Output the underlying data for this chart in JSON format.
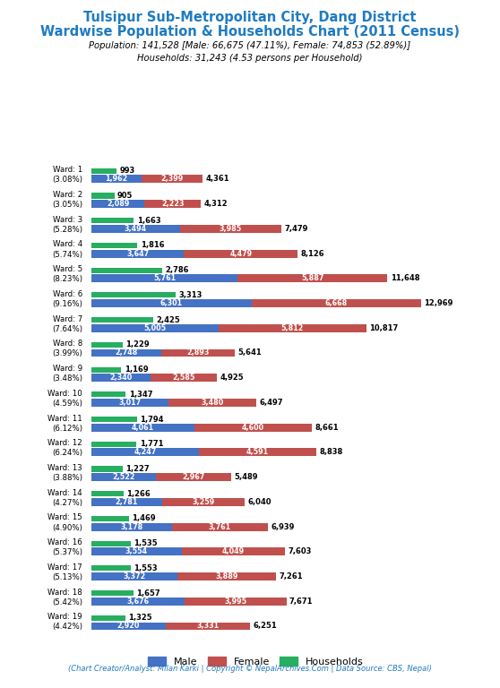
{
  "title_line1": "Tulsipur Sub-Metropolitan City, Dang District",
  "title_line2": "Wardwise Population & Households Chart (2011 Census)",
  "subtitle": "Population: 141,528 [Male: 66,675 (47.11%), Female: 74,853 (52.89%)]\nHouseholds: 31,243 (4.53 persons per Household)",
  "footer": "(Chart Creator/Analyst: Milan Karki | Copyright © NepalArchives.Com | Data Source: CBS, Nepal)",
  "wards": [
    {
      "label": "Ward: 1\n(3.08%)",
      "households": 993,
      "male": 1962,
      "female": 2399,
      "total": 4361
    },
    {
      "label": "Ward: 2\n(3.05%)",
      "households": 905,
      "male": 2089,
      "female": 2223,
      "total": 4312
    },
    {
      "label": "Ward: 3\n(5.28%)",
      "households": 1663,
      "male": 3494,
      "female": 3985,
      "total": 7479
    },
    {
      "label": "Ward: 4\n(5.74%)",
      "households": 1816,
      "male": 3647,
      "female": 4479,
      "total": 8126
    },
    {
      "label": "Ward: 5\n(8.23%)",
      "households": 2786,
      "male": 5761,
      "female": 5887,
      "total": 11648
    },
    {
      "label": "Ward: 6\n(9.16%)",
      "households": 3313,
      "male": 6301,
      "female": 6668,
      "total": 12969
    },
    {
      "label": "Ward: 7\n(7.64%)",
      "households": 2425,
      "male": 5005,
      "female": 5812,
      "total": 10817
    },
    {
      "label": "Ward: 8\n(3.99%)",
      "households": 1229,
      "male": 2748,
      "female": 2893,
      "total": 5641
    },
    {
      "label": "Ward: 9\n(3.48%)",
      "households": 1169,
      "male": 2340,
      "female": 2585,
      "total": 4925
    },
    {
      "label": "Ward: 10\n(4.59%)",
      "households": 1347,
      "male": 3017,
      "female": 3480,
      "total": 6497
    },
    {
      "label": "Ward: 11\n(6.12%)",
      "households": 1794,
      "male": 4061,
      "female": 4600,
      "total": 8661
    },
    {
      "label": "Ward: 12\n(6.24%)",
      "households": 1771,
      "male": 4247,
      "female": 4591,
      "total": 8838
    },
    {
      "label": "Ward: 13\n(3.88%)",
      "households": 1227,
      "male": 2522,
      "female": 2967,
      "total": 5489
    },
    {
      "label": "Ward: 14\n(4.27%)",
      "households": 1266,
      "male": 2781,
      "female": 3259,
      "total": 6040
    },
    {
      "label": "Ward: 15\n(4.90%)",
      "households": 1469,
      "male": 3178,
      "female": 3761,
      "total": 6939
    },
    {
      "label": "Ward: 16\n(5.37%)",
      "households": 1535,
      "male": 3554,
      "female": 4049,
      "total": 7603
    },
    {
      "label": "Ward: 17\n(5.13%)",
      "households": 1553,
      "male": 3372,
      "female": 3889,
      "total": 7261
    },
    {
      "label": "Ward: 18\n(5.42%)",
      "households": 1657,
      "male": 3676,
      "female": 3995,
      "total": 7671
    },
    {
      "label": "Ward: 19\n(4.42%)",
      "households": 1325,
      "male": 2920,
      "female": 3331,
      "total": 6251
    }
  ],
  "color_male": "#4472C4",
  "color_female": "#C0504D",
  "color_households": "#27AE60",
  "color_title": "#1F7BC0",
  "bg_color": "#FFFFFF",
  "figsize": [
    5.58,
    7.68
  ],
  "dpi": 100
}
